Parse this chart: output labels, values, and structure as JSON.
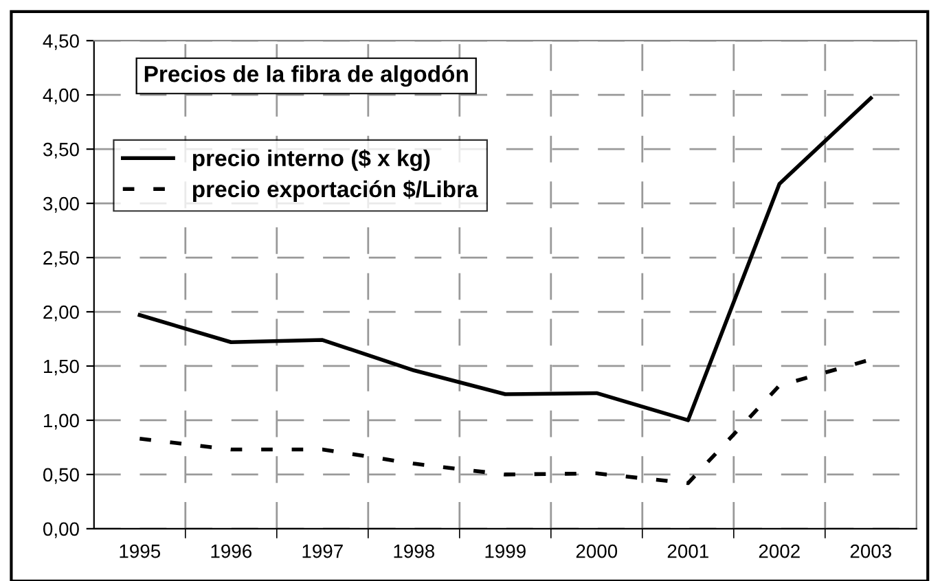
{
  "chart_data": {
    "type": "line",
    "title": "Precios de la fibra de algodón",
    "categories": [
      "1995",
      "1996",
      "1997",
      "1998",
      "1999",
      "2000",
      "2001",
      "2002",
      "2003"
    ],
    "series": [
      {
        "name": "precio interno ($ x kg)",
        "color": "#000000",
        "line_style": "solid",
        "values": [
          1.97,
          1.72,
          1.74,
          1.46,
          1.24,
          1.25,
          1.0,
          3.18,
          3.97
        ]
      },
      {
        "name": "precio exportación $/Libra",
        "color": "#000000",
        "line_style": "dashed",
        "values": [
          0.83,
          0.73,
          0.73,
          0.6,
          0.5,
          0.51,
          0.42,
          1.32,
          1.56
        ]
      }
    ],
    "ylim": [
      0,
      4.5
    ],
    "yticks": [
      {
        "value": 0,
        "label": "0,00"
      },
      {
        "value": 0.5,
        "label": "0,50"
      },
      {
        "value": 1,
        "label": "1,00"
      },
      {
        "value": 1.5,
        "label": "1,50"
      },
      {
        "value": 2,
        "label": "2,00"
      },
      {
        "value": 2.5,
        "label": "2,50"
      },
      {
        "value": 3,
        "label": "3,00"
      },
      {
        "value": 3.5,
        "label": "3,50"
      },
      {
        "value": 4,
        "label": "4,00"
      },
      {
        "value": 4.5,
        "label": "4,50"
      }
    ],
    "grid": true,
    "legend": "top left",
    "marker": "none"
  }
}
